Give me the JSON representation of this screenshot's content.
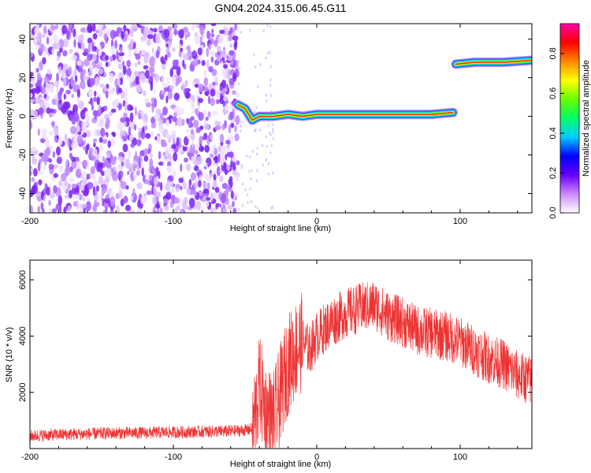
{
  "title": "GN04.2024.315.06.45.G11",
  "colors": {
    "snr_line": "#ee3333",
    "axis": "#000000"
  },
  "chart_data": [
    {
      "type": "heatmap",
      "xlabel": "Height of straight line (km)",
      "ylabel": "Frequency (Hz)",
      "xlim": [
        -200,
        150
      ],
      "ylim": [
        -50,
        48
      ],
      "xticks": [
        -200,
        -100,
        0,
        100
      ],
      "yticks": [
        -40,
        -20,
        0,
        20,
        40
      ],
      "colorbar": {
        "label": "Normalized spectral amplitude",
        "range": [
          0,
          0.95
        ],
        "ticks": [
          0.0,
          0.2,
          0.4,
          0.6,
          0.8
        ],
        "tick_labels": [
          "0.0",
          "0.2",
          "0.4",
          "0.6",
          "0.8"
        ],
        "colormap": [
          "#ffffff",
          "#cc88ff",
          "#6600ff",
          "#0000ff",
          "#00ccff",
          "#00ff66",
          "#66ff00",
          "#ffff00",
          "#ff8800",
          "#ff0000",
          "#ff00aa"
        ]
      },
      "noise_region": {
        "x": [
          -200,
          -55
        ],
        "freq": [
          -50,
          48
        ],
        "amplitude": 0.15
      },
      "ridge": [
        {
          "x": -55,
          "freq": 6
        },
        {
          "x": -50,
          "freq": 4
        },
        {
          "x": -45,
          "freq": -2
        },
        {
          "x": -40,
          "freq": 0
        },
        {
          "x": -30,
          "freq": 0
        },
        {
          "x": -20,
          "freq": 1
        },
        {
          "x": -10,
          "freq": 0
        },
        {
          "x": 0,
          "freq": 1
        },
        {
          "x": 20,
          "freq": 1
        },
        {
          "x": 40,
          "freq": 1
        },
        {
          "x": 60,
          "freq": 1
        },
        {
          "x": 80,
          "freq": 1
        },
        {
          "x": 95,
          "freq": 2
        },
        {
          "x": 97,
          "freq": 27
        },
        {
          "x": 110,
          "freq": 28
        },
        {
          "x": 130,
          "freq": 28
        },
        {
          "x": 150,
          "freq": 29
        }
      ],
      "grid": false
    },
    {
      "type": "line",
      "xlabel": "Height of straight line (km)",
      "ylabel": "SNR (10 * v/v)",
      "xlim": [
        -200,
        150
      ],
      "ylim": [
        0,
        6700
      ],
      "xticks": [
        -200,
        -100,
        0,
        100
      ],
      "yticks": [
        2000,
        4000,
        6000
      ],
      "series": [
        {
          "x": [
            -200,
            -180,
            -160,
            -140,
            -120,
            -100,
            -80,
            -60,
            -50,
            -45,
            -42,
            -40,
            -35,
            -30,
            -25,
            -20,
            -15,
            -10,
            -5,
            0,
            10,
            20,
            30,
            40,
            50,
            60,
            70,
            80,
            90,
            100,
            110,
            120,
            130,
            140,
            150
          ],
          "y": [
            450,
            500,
            520,
            550,
            560,
            580,
            600,
            620,
            650,
            700,
            1500,
            2300,
            1200,
            1000,
            2000,
            3000,
            3500,
            3800,
            3500,
            4000,
            4500,
            4800,
            5000,
            5100,
            4700,
            4500,
            4200,
            4100,
            4000,
            3800,
            3500,
            3200,
            3000,
            2600,
            2400
          ]
        }
      ],
      "grid": false
    }
  ]
}
